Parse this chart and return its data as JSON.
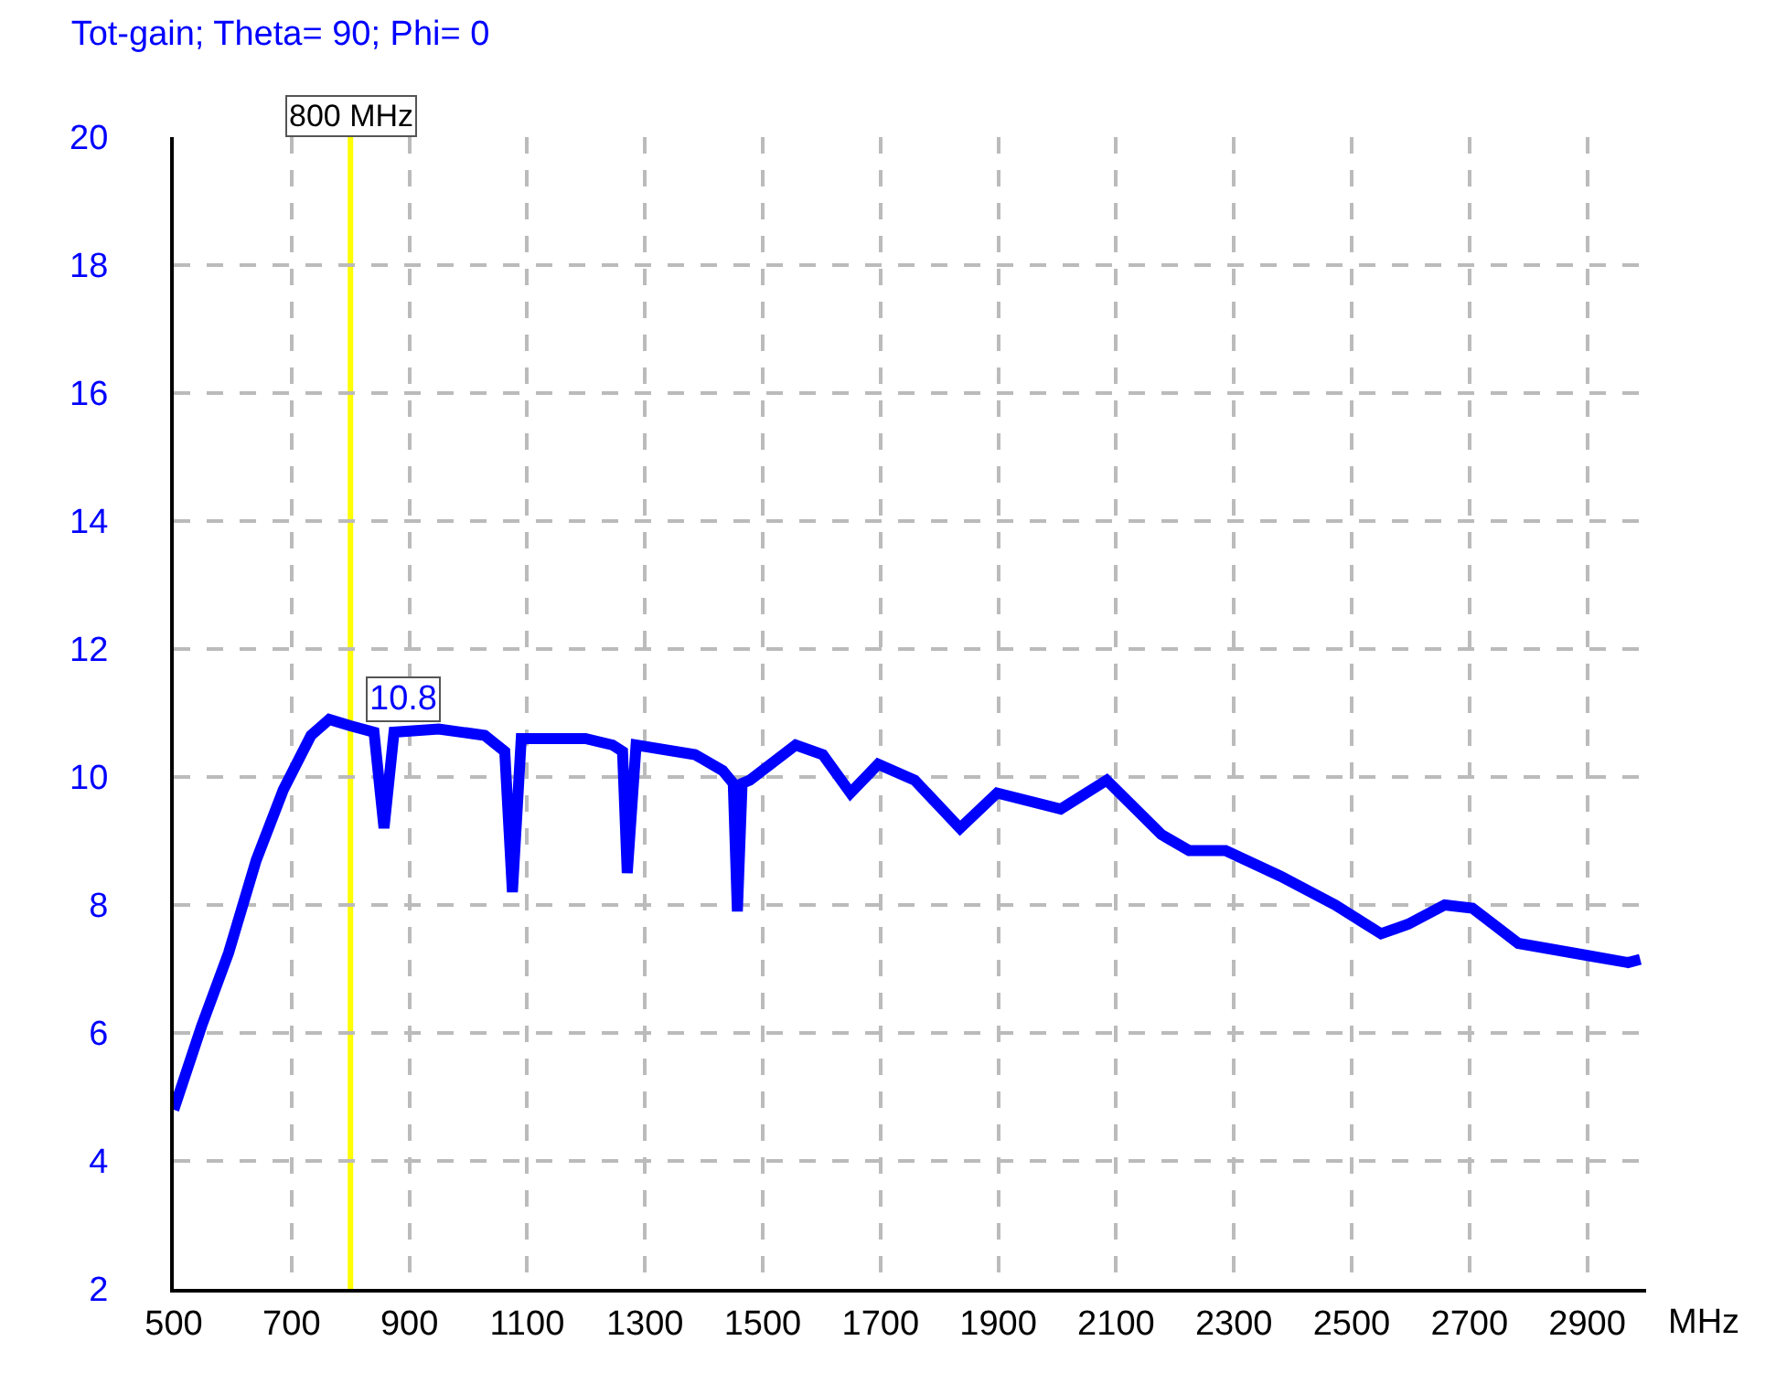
{
  "chart_data": {
    "type": "line",
    "title": "Tot-gain; Theta= 90; Phi= 0",
    "xlabel": "MHz",
    "x": [
      500,
      547,
      593,
      640,
      686,
      733,
      764,
      800,
      840,
      857,
      874,
      950,
      1028,
      1062,
      1075,
      1090,
      1199,
      1245,
      1262,
      1270,
      1285,
      1385,
      1432,
      1450,
      1457,
      1465,
      1478,
      1556,
      1602,
      1649,
      1696,
      1758,
      1835,
      1898,
      2006,
      2084,
      2177,
      2224,
      2286,
      2379,
      2472,
      2550,
      2596,
      2658,
      2705,
      2783,
      2845,
      2907,
      2969,
      2990
    ],
    "series": [
      {
        "color": "#0000ff",
        "values": [
          4.8,
          6.1,
          7.25,
          8.7,
          9.8,
          10.65,
          10.9,
          10.8,
          10.7,
          9.2,
          10.7,
          10.75,
          10.65,
          10.4,
          8.2,
          10.6,
          10.6,
          10.5,
          10.4,
          8.5,
          10.5,
          10.35,
          10.1,
          9.9,
          7.9,
          9.9,
          9.95,
          10.5,
          10.35,
          9.75,
          10.2,
          9.95,
          9.2,
          9.75,
          9.5,
          9.95,
          9.1,
          8.85,
          8.85,
          8.45,
          8.0,
          7.55,
          7.7,
          8.0,
          7.95,
          7.4,
          7.3,
          7.2,
          7.1,
          7.15
        ]
      }
    ],
    "xlim": [
      500,
      3000
    ],
    "xticks": [
      500,
      700,
      900,
      1100,
      1300,
      1500,
      1700,
      1900,
      2100,
      2300,
      2500,
      2700,
      2900
    ],
    "ylim": [
      2,
      20
    ],
    "yticks": [
      2,
      4,
      6,
      8,
      10,
      12,
      14,
      16,
      18,
      20
    ],
    "grid": true,
    "marker": "none",
    "line_style": "solid",
    "ref_lines": [
      {
        "axis": "x",
        "value": 800,
        "label": "800 MHz",
        "color": "#ffff00"
      }
    ],
    "annotations": [
      {
        "text": "10.8",
        "x": 800,
        "y": 10.8
      }
    ]
  }
}
